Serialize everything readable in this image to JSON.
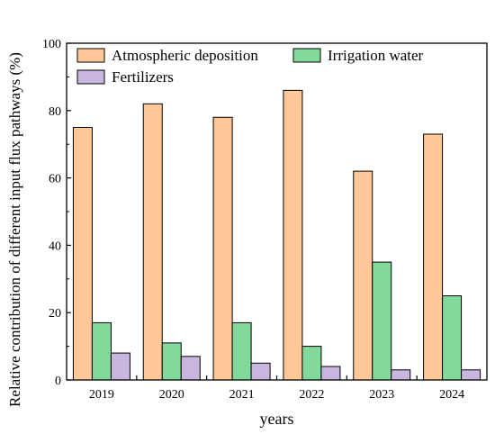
{
  "chart_data": {
    "type": "bar",
    "categories": [
      "2019",
      "2020",
      "2021",
      "2022",
      "2023",
      "2024"
    ],
    "series": [
      {
        "name": "Atmospheric deposition",
        "values": [
          75,
          82,
          78,
          86,
          62,
          73
        ],
        "color": "#FFC896"
      },
      {
        "name": "Irrigation water",
        "values": [
          17,
          11,
          17,
          10,
          35,
          25
        ],
        "color": "#82D99B"
      },
      {
        "name": "Fertilizers",
        "values": [
          8,
          7,
          5,
          4,
          3,
          3
        ],
        "color": "#C9B6DE"
      }
    ],
    "xlabel": "years",
    "ylabel": "Relative contribution of different input flux pathways (%)",
    "ylim": [
      0,
      100
    ],
    "yticks": [
      0,
      20,
      40,
      60,
      80,
      100
    ],
    "grid": false,
    "legend_position": "top"
  }
}
